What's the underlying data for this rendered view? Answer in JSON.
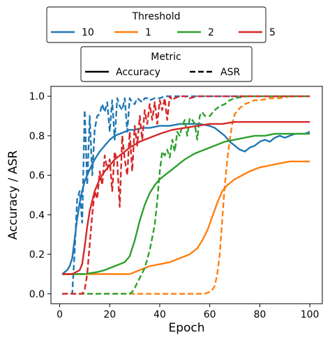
{
  "chart_data": {
    "type": "line",
    "xlabel": "Epoch",
    "ylabel": "Accuracy / ASR",
    "xlim": [
      -3.5,
      105
    ],
    "ylim": [
      -0.05,
      1.05
    ],
    "xticks": [
      0,
      20,
      40,
      60,
      80,
      100
    ],
    "yticks": [
      0.0,
      0.2,
      0.4,
      0.6,
      0.8,
      1.0
    ],
    "grid": false,
    "legends": [
      {
        "title": "Threshold",
        "placement": "top-center",
        "entries": [
          {
            "label": "10",
            "color": "#1f77b4"
          },
          {
            "label": "1",
            "color": "#ff7f0e"
          },
          {
            "label": "2",
            "color": "#2ca02c"
          },
          {
            "label": "5",
            "color": "#d62728"
          }
        ]
      },
      {
        "title": "Metric",
        "placement": "top-center",
        "entries": [
          {
            "label": "Accuracy",
            "style": "solid"
          },
          {
            "label": "ASR",
            "style": "dashed"
          }
        ]
      }
    ],
    "series": [
      {
        "threshold": "10",
        "metric": "Accuracy",
        "color": "#1f77b4",
        "style": "solid",
        "x": [
          1,
          2,
          3,
          4,
          5,
          6,
          7,
          8,
          9,
          10,
          12,
          14,
          16,
          18,
          20,
          22,
          24,
          26,
          28,
          30,
          33,
          36,
          40,
          44,
          48,
          52,
          56,
          60,
          62,
          64,
          66,
          68,
          70,
          72,
          74,
          76,
          78,
          80,
          82,
          84,
          86,
          88,
          90,
          92,
          94,
          96,
          98,
          100
        ],
        "y": [
          0.1,
          0.11,
          0.12,
          0.14,
          0.18,
          0.28,
          0.38,
          0.46,
          0.52,
          0.57,
          0.63,
          0.68,
          0.72,
          0.75,
          0.78,
          0.8,
          0.81,
          0.82,
          0.83,
          0.83,
          0.84,
          0.84,
          0.85,
          0.85,
          0.86,
          0.86,
          0.86,
          0.85,
          0.84,
          0.82,
          0.8,
          0.77,
          0.75,
          0.73,
          0.72,
          0.74,
          0.75,
          0.77,
          0.78,
          0.77,
          0.79,
          0.8,
          0.79,
          0.8,
          0.81,
          0.81,
          0.81,
          0.82
        ]
      },
      {
        "threshold": "10",
        "metric": "ASR",
        "color": "#1f77b4",
        "style": "dashed",
        "x": [
          1,
          2,
          3,
          4,
          5,
          6,
          7,
          8,
          9,
          10,
          11,
          12,
          13,
          14,
          15,
          16,
          17,
          18,
          19,
          20,
          21,
          22,
          23,
          24,
          25,
          26,
          27,
          28,
          29,
          30,
          31,
          32,
          33,
          34,
          35,
          36,
          38,
          40,
          42,
          44,
          46,
          48,
          50,
          52,
          54,
          56,
          58,
          60,
          62,
          64,
          66,
          68,
          70,
          75,
          80,
          85,
          90,
          95,
          100
        ],
        "y": [
          0.0,
          0.0,
          0.0,
          0.0,
          0.0,
          0.22,
          0.48,
          0.52,
          0.36,
          0.93,
          0.55,
          0.9,
          0.6,
          0.83,
          0.9,
          0.91,
          0.96,
          0.92,
          0.97,
          0.82,
          0.98,
          0.78,
          0.99,
          0.95,
          0.93,
          0.99,
          0.82,
          0.99,
          0.97,
          0.96,
          0.99,
          0.98,
          0.97,
          0.99,
          0.99,
          0.98,
          0.99,
          0.99,
          1.0,
          1.0,
          1.0,
          1.0,
          1.0,
          1.0,
          1.0,
          1.0,
          1.0,
          1.0,
          1.0,
          1.0,
          1.0,
          1.0,
          1.0,
          1.0,
          1.0,
          1.0,
          1.0,
          1.0,
          1.0
        ]
      },
      {
        "threshold": "1",
        "metric": "Accuracy",
        "color": "#ff7f0e",
        "style": "solid",
        "x": [
          1,
          5,
          10,
          15,
          20,
          25,
          28,
          30,
          32,
          34,
          36,
          40,
          44,
          48,
          52,
          55,
          57,
          59,
          61,
          63,
          65,
          67,
          70,
          73,
          76,
          80,
          84,
          88,
          92,
          96,
          100
        ],
        "y": [
          0.1,
          0.1,
          0.1,
          0.1,
          0.1,
          0.1,
          0.1,
          0.11,
          0.12,
          0.13,
          0.14,
          0.15,
          0.16,
          0.18,
          0.2,
          0.23,
          0.27,
          0.32,
          0.39,
          0.46,
          0.52,
          0.55,
          0.58,
          0.6,
          0.62,
          0.64,
          0.65,
          0.66,
          0.67,
          0.67,
          0.67
        ]
      },
      {
        "threshold": "1",
        "metric": "ASR",
        "color": "#ff7f0e",
        "style": "dashed",
        "x": [
          1,
          10,
          20,
          30,
          40,
          50,
          55,
          58,
          60,
          61,
          62,
          63,
          64,
          65,
          66,
          67,
          68,
          69,
          70,
          72,
          74,
          76,
          78,
          80,
          84,
          88,
          92,
          96,
          100
        ],
        "y": [
          0.0,
          0.0,
          0.0,
          0.0,
          0.0,
          0.0,
          0.0,
          0.0,
          0.01,
          0.02,
          0.04,
          0.1,
          0.2,
          0.38,
          0.55,
          0.68,
          0.78,
          0.86,
          0.91,
          0.94,
          0.96,
          0.97,
          0.98,
          0.98,
          0.99,
          0.99,
          1.0,
          1.0,
          1.0
        ]
      },
      {
        "threshold": "2",
        "metric": "Accuracy",
        "color": "#2ca02c",
        "style": "solid",
        "x": [
          1,
          5,
          10,
          15,
          18,
          20,
          22,
          24,
          26,
          28,
          30,
          32,
          34,
          36,
          38,
          40,
          42,
          44,
          46,
          48,
          50,
          54,
          58,
          62,
          66,
          70,
          74,
          78,
          82,
          86,
          90,
          95,
          100
        ],
        "y": [
          0.1,
          0.1,
          0.1,
          0.11,
          0.12,
          0.13,
          0.14,
          0.15,
          0.16,
          0.19,
          0.27,
          0.37,
          0.45,
          0.51,
          0.55,
          0.58,
          0.6,
          0.62,
          0.64,
          0.66,
          0.68,
          0.71,
          0.73,
          0.75,
          0.77,
          0.78,
          0.79,
          0.8,
          0.8,
          0.81,
          0.81,
          0.81,
          0.81
        ]
      },
      {
        "threshold": "2",
        "metric": "ASR",
        "color": "#2ca02c",
        "style": "dashed",
        "x": [
          1,
          10,
          20,
          28,
          29,
          30,
          32,
          34,
          36,
          38,
          39,
          40,
          41,
          42,
          43,
          44,
          45,
          46,
          47,
          48,
          49,
          50,
          51,
          52,
          53,
          54,
          55,
          56,
          57,
          58,
          60,
          62,
          64,
          66,
          68,
          70,
          75,
          80,
          85,
          90,
          95,
          100
        ],
        "y": [
          0.0,
          0.0,
          0.0,
          0.0,
          0.01,
          0.03,
          0.08,
          0.13,
          0.22,
          0.35,
          0.47,
          0.62,
          0.72,
          0.7,
          0.73,
          0.69,
          0.78,
          0.72,
          0.82,
          0.8,
          0.85,
          0.88,
          0.8,
          0.89,
          0.88,
          0.86,
          0.78,
          0.9,
          0.92,
          0.9,
          0.9,
          0.93,
          0.95,
          0.96,
          0.98,
          0.99,
          1.0,
          1.0,
          1.0,
          1.0,
          1.0,
          1.0
        ]
      },
      {
        "threshold": "5",
        "metric": "Accuracy",
        "color": "#d62728",
        "style": "solid",
        "x": [
          1,
          5,
          8,
          9,
          10,
          11,
          12,
          13,
          14,
          16,
          18,
          20,
          22,
          25,
          28,
          32,
          36,
          40,
          45,
          50,
          55,
          60,
          65,
          70,
          75,
          80,
          85,
          90,
          95,
          100
        ],
        "y": [
          0.1,
          0.1,
          0.12,
          0.15,
          0.24,
          0.34,
          0.42,
          0.47,
          0.52,
          0.58,
          0.62,
          0.65,
          0.68,
          0.71,
          0.74,
          0.77,
          0.79,
          0.81,
          0.83,
          0.84,
          0.85,
          0.86,
          0.86,
          0.87,
          0.87,
          0.87,
          0.87,
          0.87,
          0.87,
          0.87
        ]
      },
      {
        "threshold": "5",
        "metric": "ASR",
        "color": "#d62728",
        "style": "dashed",
        "x": [
          1,
          5,
          9,
          10,
          11,
          12,
          13,
          14,
          15,
          16,
          17,
          18,
          19,
          20,
          21,
          22,
          23,
          24,
          25,
          26,
          27,
          28,
          29,
          30,
          31,
          32,
          33,
          34,
          35,
          36,
          37,
          38,
          39,
          40,
          41,
          42,
          43,
          44,
          45,
          46,
          48,
          50,
          52,
          55,
          60,
          65,
          70,
          80,
          90,
          100
        ],
        "y": [
          0.0,
          0.0,
          0.0,
          0.02,
          0.1,
          0.25,
          0.4,
          0.52,
          0.48,
          0.62,
          0.55,
          0.7,
          0.63,
          0.68,
          0.52,
          0.72,
          0.67,
          0.44,
          0.8,
          0.68,
          0.6,
          0.82,
          0.62,
          0.85,
          0.75,
          0.9,
          0.78,
          0.93,
          0.86,
          0.96,
          0.88,
          0.97,
          0.86,
          0.98,
          0.93,
          0.99,
          0.88,
          1.0,
          0.98,
          0.99,
          1.0,
          1.0,
          0.99,
          1.0,
          1.0,
          1.0,
          1.0,
          1.0,
          1.0,
          1.0
        ]
      }
    ]
  }
}
